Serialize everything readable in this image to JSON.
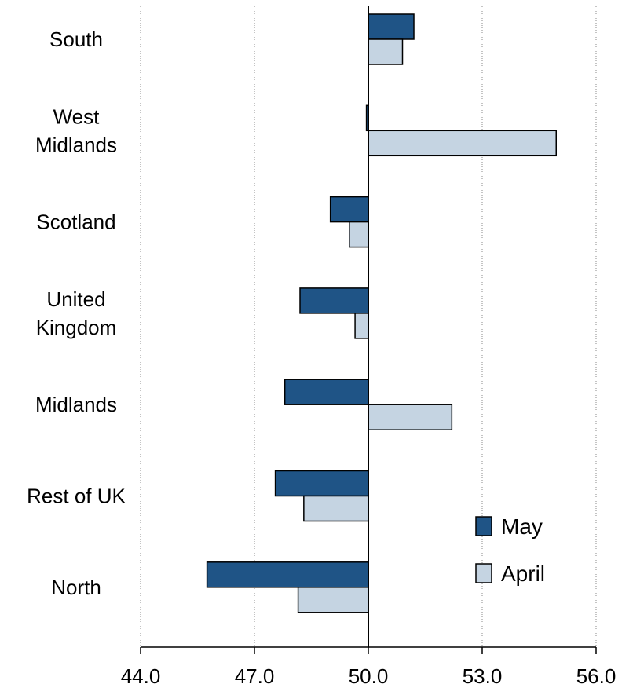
{
  "chart_data": {
    "type": "bar",
    "orientation": "horizontal",
    "categories": [
      [
        "South"
      ],
      [
        "West",
        "Midlands"
      ],
      [
        "Scotland"
      ],
      [
        "United",
        "Kingdom"
      ],
      [
        "Midlands"
      ],
      [
        "Rest of UK"
      ],
      [
        "North"
      ]
    ],
    "series": [
      {
        "name": "May",
        "values": [
          51.2,
          49.95,
          49.0,
          48.2,
          47.8,
          47.55,
          45.75
        ],
        "color": "#1f5486"
      },
      {
        "name": "April",
        "values": [
          50.9,
          54.95,
          49.5,
          49.65,
          52.2,
          48.3,
          48.15
        ],
        "color": "#c5d4e2"
      }
    ],
    "baseline": 50.0,
    "xlim": [
      44.0,
      56.0
    ],
    "xticks": [
      "44.0",
      "47.0",
      "50.0",
      "53.0",
      "56.0"
    ],
    "grid": "vertical dotted",
    "legend_position": "bottom-right",
    "title": "",
    "xlabel": "",
    "ylabel": ""
  }
}
